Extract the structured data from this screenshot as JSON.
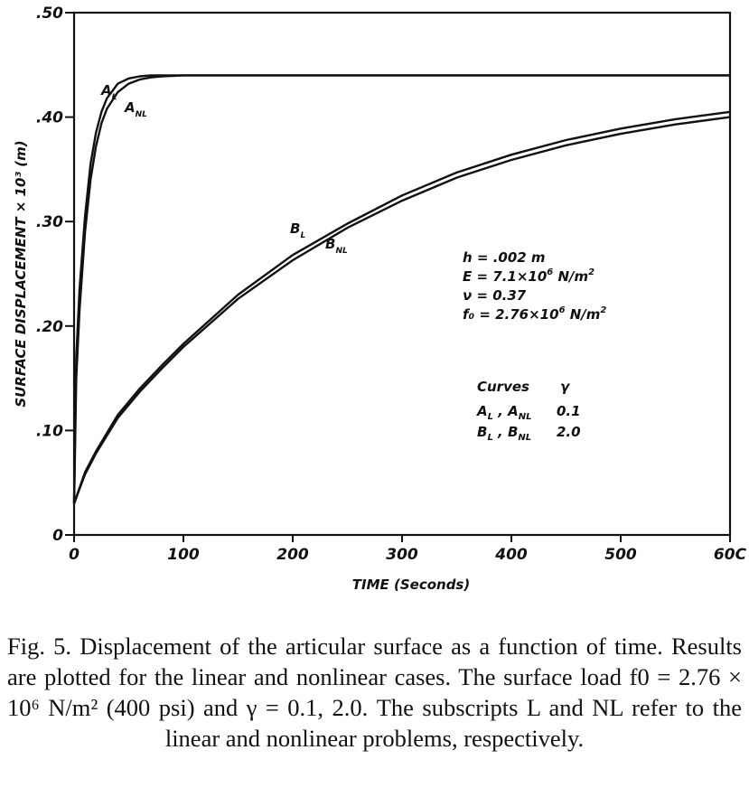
{
  "chart_data": {
    "type": "line",
    "xlabel": "TIME (Seconds)",
    "ylabel": "SURFACE DISPLACEMENT × 10³ (m)",
    "xlim": [
      0,
      600
    ],
    "ylim": [
      0,
      0.5
    ],
    "x_ticks": [
      "0",
      "100",
      "200",
      "300",
      "400",
      "500",
      "60C"
    ],
    "y_ticks": [
      "0",
      ".10",
      ".20",
      ".30",
      ".40",
      ".50"
    ],
    "grid": false,
    "series": [
      {
        "name": "A_L",
        "label_text": "A",
        "label_sub": "L",
        "x": [
          0,
          2,
          5,
          10,
          15,
          20,
          25,
          30,
          40,
          50,
          60,
          70,
          80,
          100,
          150,
          200,
          300,
          400,
          500,
          600
        ],
        "y": [
          0.03,
          0.17,
          0.235,
          0.305,
          0.355,
          0.385,
          0.405,
          0.418,
          0.432,
          0.437,
          0.439,
          0.44,
          0.44,
          0.44,
          0.44,
          0.44,
          0.44,
          0.44,
          0.44,
          0.44
        ]
      },
      {
        "name": "A_NL",
        "label_text": "A",
        "label_sub": "NL",
        "x": [
          0,
          2,
          5,
          10,
          15,
          20,
          25,
          30,
          40,
          50,
          60,
          70,
          80,
          100,
          150,
          200,
          300,
          400,
          500,
          600
        ],
        "y": [
          0.03,
          0.15,
          0.215,
          0.29,
          0.34,
          0.372,
          0.394,
          0.408,
          0.424,
          0.432,
          0.436,
          0.438,
          0.439,
          0.44,
          0.44,
          0.44,
          0.44,
          0.44,
          0.44,
          0.44
        ]
      },
      {
        "name": "B_L",
        "label_text": "B",
        "label_sub": "L",
        "x": [
          0,
          5,
          10,
          20,
          40,
          60,
          80,
          100,
          150,
          200,
          250,
          300,
          350,
          400,
          450,
          500,
          550,
          600
        ],
        "y": [
          0.03,
          0.045,
          0.06,
          0.08,
          0.115,
          0.14,
          0.162,
          0.183,
          0.23,
          0.268,
          0.298,
          0.325,
          0.347,
          0.364,
          0.378,
          0.389,
          0.398,
          0.405
        ]
      },
      {
        "name": "B_NL",
        "label_text": "B",
        "label_sub": "NL",
        "x": [
          0,
          5,
          10,
          20,
          40,
          60,
          80,
          100,
          150,
          200,
          250,
          300,
          350,
          400,
          450,
          500,
          550,
          600
        ],
        "y": [
          0.03,
          0.044,
          0.058,
          0.078,
          0.112,
          0.137,
          0.159,
          0.18,
          0.226,
          0.263,
          0.294,
          0.32,
          0.342,
          0.359,
          0.373,
          0.384,
          0.393,
          0.4
        ]
      }
    ],
    "annotations": {
      "params": [
        {
          "text": "h = .002 m"
        },
        {
          "text": "E = 7.1×10",
          "sup": "6",
          "tail": " N/m",
          "sup2": "2"
        },
        {
          "text": "ν = 0.37"
        },
        {
          "text": "f₀ = 2.76×10",
          "sup": "6",
          "tail": " N/m",
          "sup2": "2"
        }
      ],
      "curves_header": "Curves",
      "gamma_header": "γ",
      "curves_table": [
        {
          "a": "A",
          "as": "L",
          "b": "A",
          "bs": "NL",
          "gamma": "0.1"
        },
        {
          "a": "B",
          "as": "L",
          "b": "B",
          "bs": "NL",
          "gamma": "2.0"
        }
      ]
    }
  },
  "caption": "Fig. 5. Displacement of the articular surface as a function of time. Results are plotted for the linear and nonlinear cases. The surface load f0 = 2.76 × 10⁶ N/m² (400 psi) and γ = 0.1, 2.0. The subscripts L and NL refer to the linear and nonlinear problems, respectively.",
  "colors": {
    "ink": "#111111",
    "background": "#ffffff"
  }
}
